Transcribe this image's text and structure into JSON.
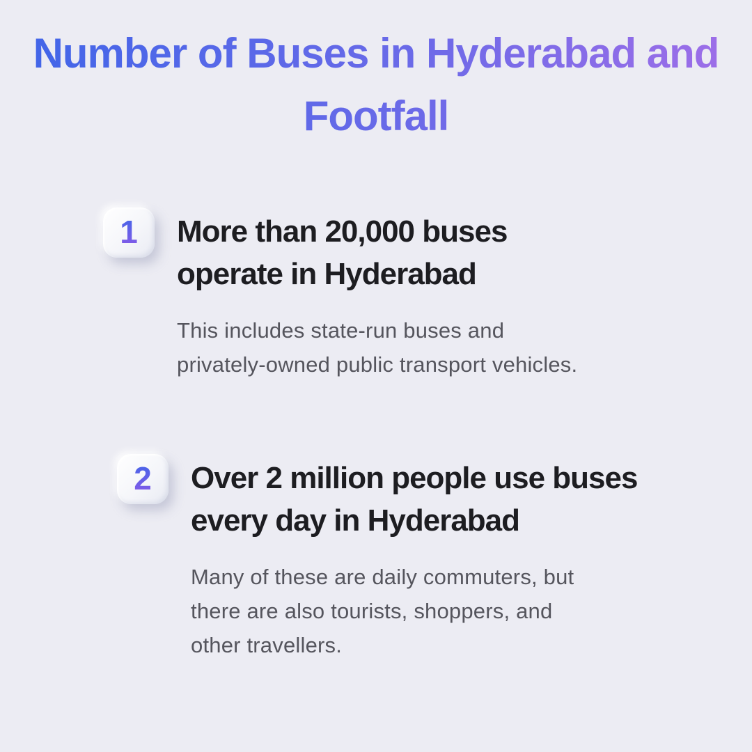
{
  "page": {
    "background_color": "#ECECF3",
    "title": {
      "text": "Number of Buses in Hyderabad and Footfall",
      "lines": [
        "Number of Buses in Hyderabad and",
        "Footfall"
      ],
      "gradient_start_color": "#4065E8",
      "gradient_end_color": "#A06EE8"
    },
    "items": [
      {
        "number": "1",
        "heading": "More than 20,000 buses operate in Hyderabad",
        "heading_lines": [
          "More than 20,000 buses",
          "operate in Hyderabad"
        ],
        "description": "This includes state-run buses and privately-owned public transport vehicles.",
        "description_lines": [
          "This includes state-run buses and",
          "privately-owned public transport vehicles."
        ]
      },
      {
        "number": "2",
        "heading": "Over 2 million people use buses every day in Hyderabad",
        "heading_lines": [
          "Over 2 million people use buses",
          "every day in Hyderabad"
        ],
        "description": "Many of these are daily commuters, but there are also tourists, shoppers, and other travellers.",
        "description_lines": [
          "Many of these are daily commuters, but",
          "there are also tourists, shoppers, and",
          "other travellers."
        ]
      }
    ],
    "colors": {
      "heading_text": "#1D1D21",
      "body_text": "#55555D",
      "number_gradient_top": "#4A64E8",
      "number_gradient_bottom": "#7F5BE8",
      "badge_background": "#FFFFFF"
    }
  }
}
